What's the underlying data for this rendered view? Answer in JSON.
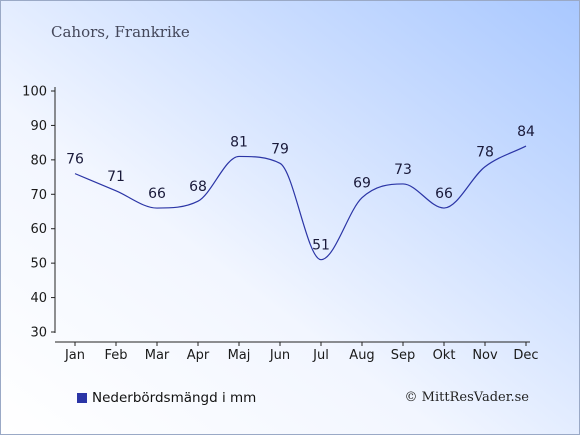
{
  "chart_data": {
    "type": "line",
    "subtitle": "Cahors, Frankrike",
    "categories": [
      "Jan",
      "Feb",
      "Mar",
      "Apr",
      "Maj",
      "Jun",
      "Jul",
      "Aug",
      "Sep",
      "Okt",
      "Nov",
      "Dec"
    ],
    "series": [
      {
        "name": "Nederbördsmängd i mm",
        "values": [
          76,
          71,
          66,
          68,
          81,
          79,
          51,
          69,
          73,
          66,
          78,
          84
        ]
      }
    ],
    "ylim": [
      30,
      100
    ],
    "yticks": [
      30,
      40,
      50,
      60,
      70,
      80,
      90,
      100
    ],
    "grid": false,
    "legend_position": "bottom-left",
    "line_color": "#2b35a6",
    "credit": "© MittResVader.se"
  }
}
